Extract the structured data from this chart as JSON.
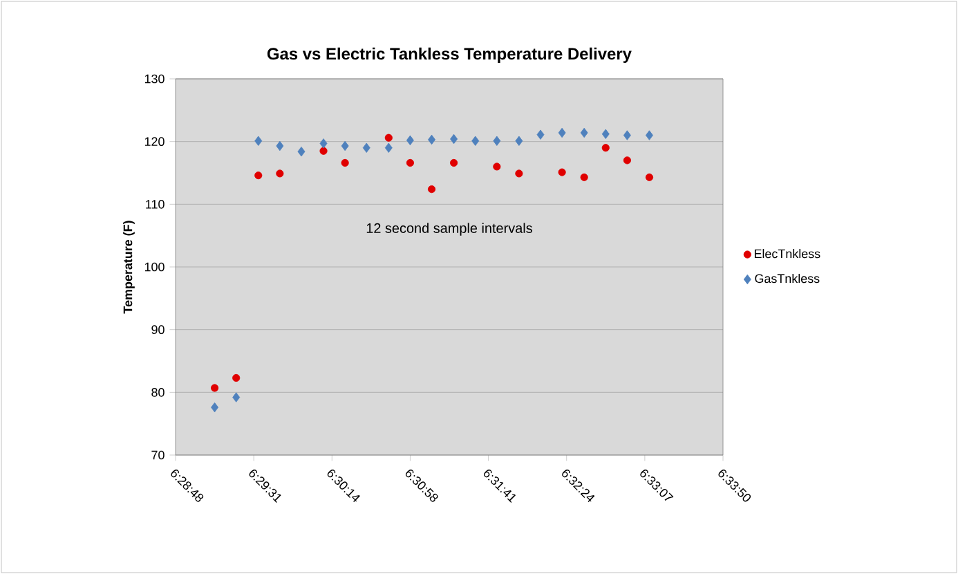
{
  "chart_data": {
    "type": "scatter",
    "title": "Gas vs Electric Tankless Temperature Delivery",
    "ylabel": "Temperature (F)",
    "x": [
      6.486,
      6.4893,
      6.4927,
      6.496,
      6.4993,
      6.5027,
      6.506,
      6.5093,
      6.5127,
      6.516,
      6.5193,
      6.5227,
      6.526,
      6.5293,
      6.5327,
      6.536,
      6.5393,
      6.5427,
      6.546,
      6.5493,
      6.5527
    ],
    "series": [
      {
        "name": "ElecTnkless",
        "color": "#e00000",
        "marker": "circle",
        "values": [
          80.7,
          82.3,
          114.6,
          114.9,
          null,
          118.5,
          116.6,
          null,
          120.6,
          116.6,
          112.4,
          116.6,
          null,
          116.0,
          114.9,
          null,
          115.1,
          114.3,
          119.0,
          117.0,
          114.3
        ]
      },
      {
        "name": "GasTnkless",
        "color": "#4f81bd",
        "marker": "diamond",
        "values": [
          77.6,
          79.2,
          120.1,
          119.3,
          118.4,
          119.7,
          119.3,
          119.0,
          119.0,
          120.2,
          120.3,
          120.4,
          120.1,
          120.1,
          120.1,
          121.1,
          121.4,
          121.4,
          121.2,
          121.0,
          121.0
        ]
      }
    ],
    "xlim": [
      6.48,
      6.564
    ],
    "xticks": [
      {
        "value": 6.48,
        "label": "6:28:48"
      },
      {
        "value": 6.492,
        "label": "6:29:31"
      },
      {
        "value": 6.504,
        "label": "6:30:14"
      },
      {
        "value": 6.516,
        "label": "6:30:58"
      },
      {
        "value": 6.528,
        "label": "6:31:41"
      },
      {
        "value": 6.54,
        "label": "6:32:24"
      },
      {
        "value": 6.552,
        "label": "6:33:07"
      },
      {
        "value": 6.564,
        "label": "6:33:50"
      }
    ],
    "ylim": [
      70,
      130
    ],
    "yticks": [
      70,
      80,
      90,
      100,
      110,
      120,
      130
    ],
    "grid": "y",
    "legend": "right",
    "annotations": [
      "12 second sample intervals"
    ]
  }
}
